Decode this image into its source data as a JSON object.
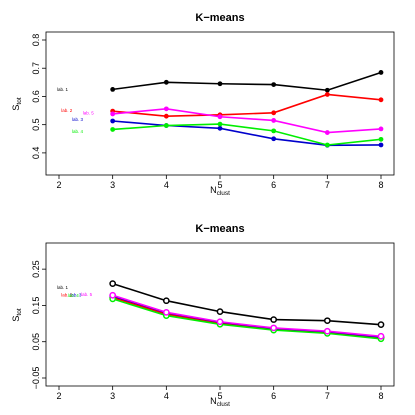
{
  "chart_data": [
    {
      "type": "line",
      "title": "K−means",
      "xlabel": "N_clust",
      "xlabel_main": "N",
      "xlabel_sub": "clust",
      "ylabel": "S_tot",
      "ylabel_main": "S",
      "ylabel_sub": "tot",
      "xlim": [
        2,
        8
      ],
      "ylim": [
        0.35,
        0.8
      ],
      "xticks": [
        2,
        3,
        4,
        5,
        6,
        7,
        8
      ],
      "yticks": [
        0.4,
        0.5,
        0.6,
        0.7,
        0.8
      ],
      "ytick_labels": [
        "0.4",
        "0.5",
        "0.6",
        "0.7",
        "0.8"
      ],
      "marker": "filled-circle",
      "x": [
        3,
        4,
        5,
        6,
        7,
        8
      ],
      "series": [
        {
          "name": "lab. 1",
          "color": "#000000",
          "values": [
            0.625,
            0.65,
            0.645,
            0.642,
            0.622,
            0.685
          ],
          "label_x": 2.0,
          "label_y": 0.625
        },
        {
          "name": "lab. 2",
          "color": "#ff0000",
          "values": [
            0.548,
            0.53,
            0.535,
            0.542,
            0.607,
            0.588
          ],
          "label_x": 2.08,
          "label_y": 0.55
        },
        {
          "name": "lab. 3",
          "color": "#0000cc",
          "values": [
            0.513,
            0.497,
            0.487,
            0.45,
            0.427,
            0.428
          ],
          "label_x": 2.28,
          "label_y": 0.519
        },
        {
          "name": "lab. 4",
          "color": "#00ee00",
          "values": [
            0.483,
            0.497,
            0.502,
            0.478,
            0.428,
            0.448
          ],
          "label_x": 2.28,
          "label_y": 0.475
        },
        {
          "name": "lab. 5",
          "color": "#ff00ff",
          "values": [
            0.538,
            0.556,
            0.528,
            0.515,
            0.472,
            0.485
          ],
          "label_x": 2.48,
          "label_y": 0.542
        }
      ]
    },
    {
      "type": "line",
      "title": "K−means",
      "xlabel": "N_clust",
      "xlabel_main": "N",
      "xlabel_sub": "clust",
      "ylabel": "S_tot",
      "ylabel_main": "S",
      "ylabel_sub": "tot",
      "xlim": [
        2,
        8
      ],
      "ylim": [
        -0.05,
        0.3
      ],
      "xticks": [
        2,
        3,
        4,
        5,
        6,
        7,
        8
      ],
      "yticks": [
        -0.05,
        0.05,
        0.15,
        0.25
      ],
      "ytick_labels": [
        "−0.05",
        "0.05",
        "0.15",
        "0.25"
      ],
      "marker": "open-circle",
      "x": [
        3,
        4,
        5,
        6,
        7,
        8
      ],
      "series": [
        {
          "name": "lab. 1",
          "color": "#000000",
          "values": [
            0.21,
            0.163,
            0.133,
            0.111,
            0.108,
            0.097
          ],
          "label_x": 2.0,
          "label_y": 0.2
        },
        {
          "name": "lab. 2",
          "color": "#ff0000",
          "values": [
            0.172,
            0.126,
            0.101,
            0.085,
            0.076,
            0.061
          ],
          "label_x": 2.08,
          "label_y": 0.179
        },
        {
          "name": "lab. 3",
          "color": "#0000cc",
          "values": [
            0.176,
            0.13,
            0.104,
            0.087,
            0.078,
            0.063
          ],
          "label_x": 2.25,
          "label_y": 0.179
        },
        {
          "name": "lab. 4",
          "color": "#00ee00",
          "values": [
            0.168,
            0.122,
            0.098,
            0.082,
            0.073,
            0.058
          ],
          "label_x": 2.2,
          "label_y": 0.177
        },
        {
          "name": "lab. 5",
          "color": "#ff00ff",
          "values": [
            0.178,
            0.131,
            0.105,
            0.088,
            0.079,
            0.065
          ],
          "label_x": 2.45,
          "label_y": 0.18
        }
      ]
    }
  ]
}
